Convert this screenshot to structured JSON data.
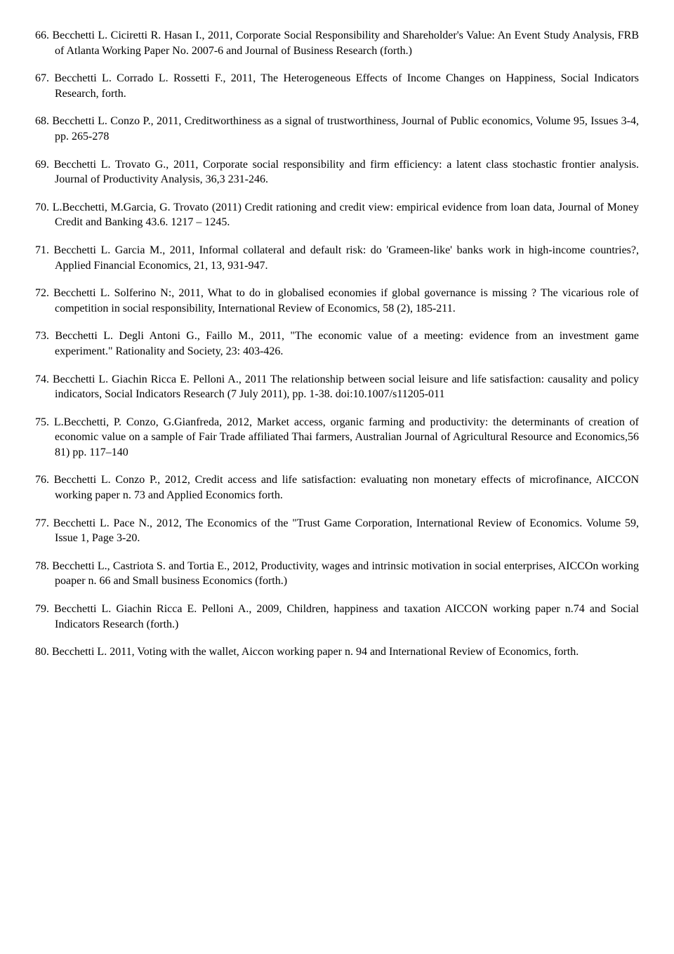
{
  "references": [
    {
      "num": "66.",
      "text": "Becchetti L. Ciciretti R. Hasan I., 2011, Corporate Social Responsibility and Shareholder's Value: An Event Study Analysis, FRB of Atlanta Working Paper No. 2007-6 and Journal of Business Research (forth.)"
    },
    {
      "num": "67.",
      "text": "Becchetti L. Corrado L. Rossetti F., 2011, The Heterogeneous Effects of Income Changes on Happiness, Social Indicators Research, forth."
    },
    {
      "num": "68.",
      "text": "Becchetti L. Conzo P., 2011, Creditworthiness as a signal of trustworthiness, Journal of Public economics, Volume 95, Issues 3-4, pp. 265-278"
    },
    {
      "num": "69.",
      "text": "Becchetti L. Trovato G., 2011, Corporate social responsibility and firm efficiency: a latent class stochastic frontier analysis. Journal of Productivity Analysis, 36,3 231-246."
    },
    {
      "num": "70.",
      "text": "L.Becchetti, M.Garcia, G. Trovato (2011) Credit rationing and credit view: empirical evidence from loan data, Journal of Money Credit and Banking 43.6. 1217 – 1245."
    },
    {
      "num": "71.",
      "text": "Becchetti L. Garcia M., 2011, Informal collateral and default risk: do 'Grameen-like' banks work in high-income countries?, Applied Financial Economics, 21, 13, 931-947."
    },
    {
      "num": "72.",
      "text": "Becchetti L. Solferino N:, 2011, What to do in globalised economies if global governance is missing ? The vicarious role of competition in social responsibility, International Review of Economics, 58 (2), 185-211."
    },
    {
      "num": "73.",
      "text": "Becchetti L. Degli Antoni G., Faillo M., 2011, \"The economic value of a meeting: evidence from an investment game experiment.\" Rationality and Society, 23: 403-426."
    },
    {
      "num": "74.",
      "text": "Becchetti L. Giachin Ricca E. Pelloni A., 2011 The relationship between social leisure and life satisfaction: causality and policy indicators, Social Indicators Research (7 July 2011), pp. 1-38. doi:10.1007/s11205-011"
    },
    {
      "num": "75.",
      "text": "L.Becchetti, P. Conzo, G.Gianfreda, 2012, Market access, organic farming and productivity: the determinants of creation of economic value on a sample of Fair Trade affiliated Thai farmers, Australian Journal of Agricultural Resource and Economics,56 81) pp. 117–140"
    },
    {
      "num": "76.",
      "text": "Becchetti L. Conzo P., 2012, Credit access and life satisfaction: evaluating non monetary effects of microfinance, AICCON working paper n. 73 and Applied Economics forth."
    },
    {
      "num": "77.",
      "text": "Becchetti L. Pace N., 2012, The Economics of the \"Trust Game Corporation, International Review of Economics. Volume 59, Issue 1, Page 3-20."
    },
    {
      "num": "78.",
      "text": "Becchetti L., Castriota S. and Tortia E., 2012, Productivity, wages and intrinsic motivation in social enterprises, AICCOn working poaper n. 66 and Small business Economics (forth.)"
    },
    {
      "num": "79.",
      "text": "Becchetti L. Giachin Ricca E. Pelloni A., 2009, Children, happiness and taxation AICCON working paper n.74 and Social Indicators Research (forth.)"
    },
    {
      "num": "80.",
      "text": "Becchetti L. 2011, Voting with the wallet, Aiccon working paper n. 94 and International Review of Economics, forth."
    }
  ]
}
